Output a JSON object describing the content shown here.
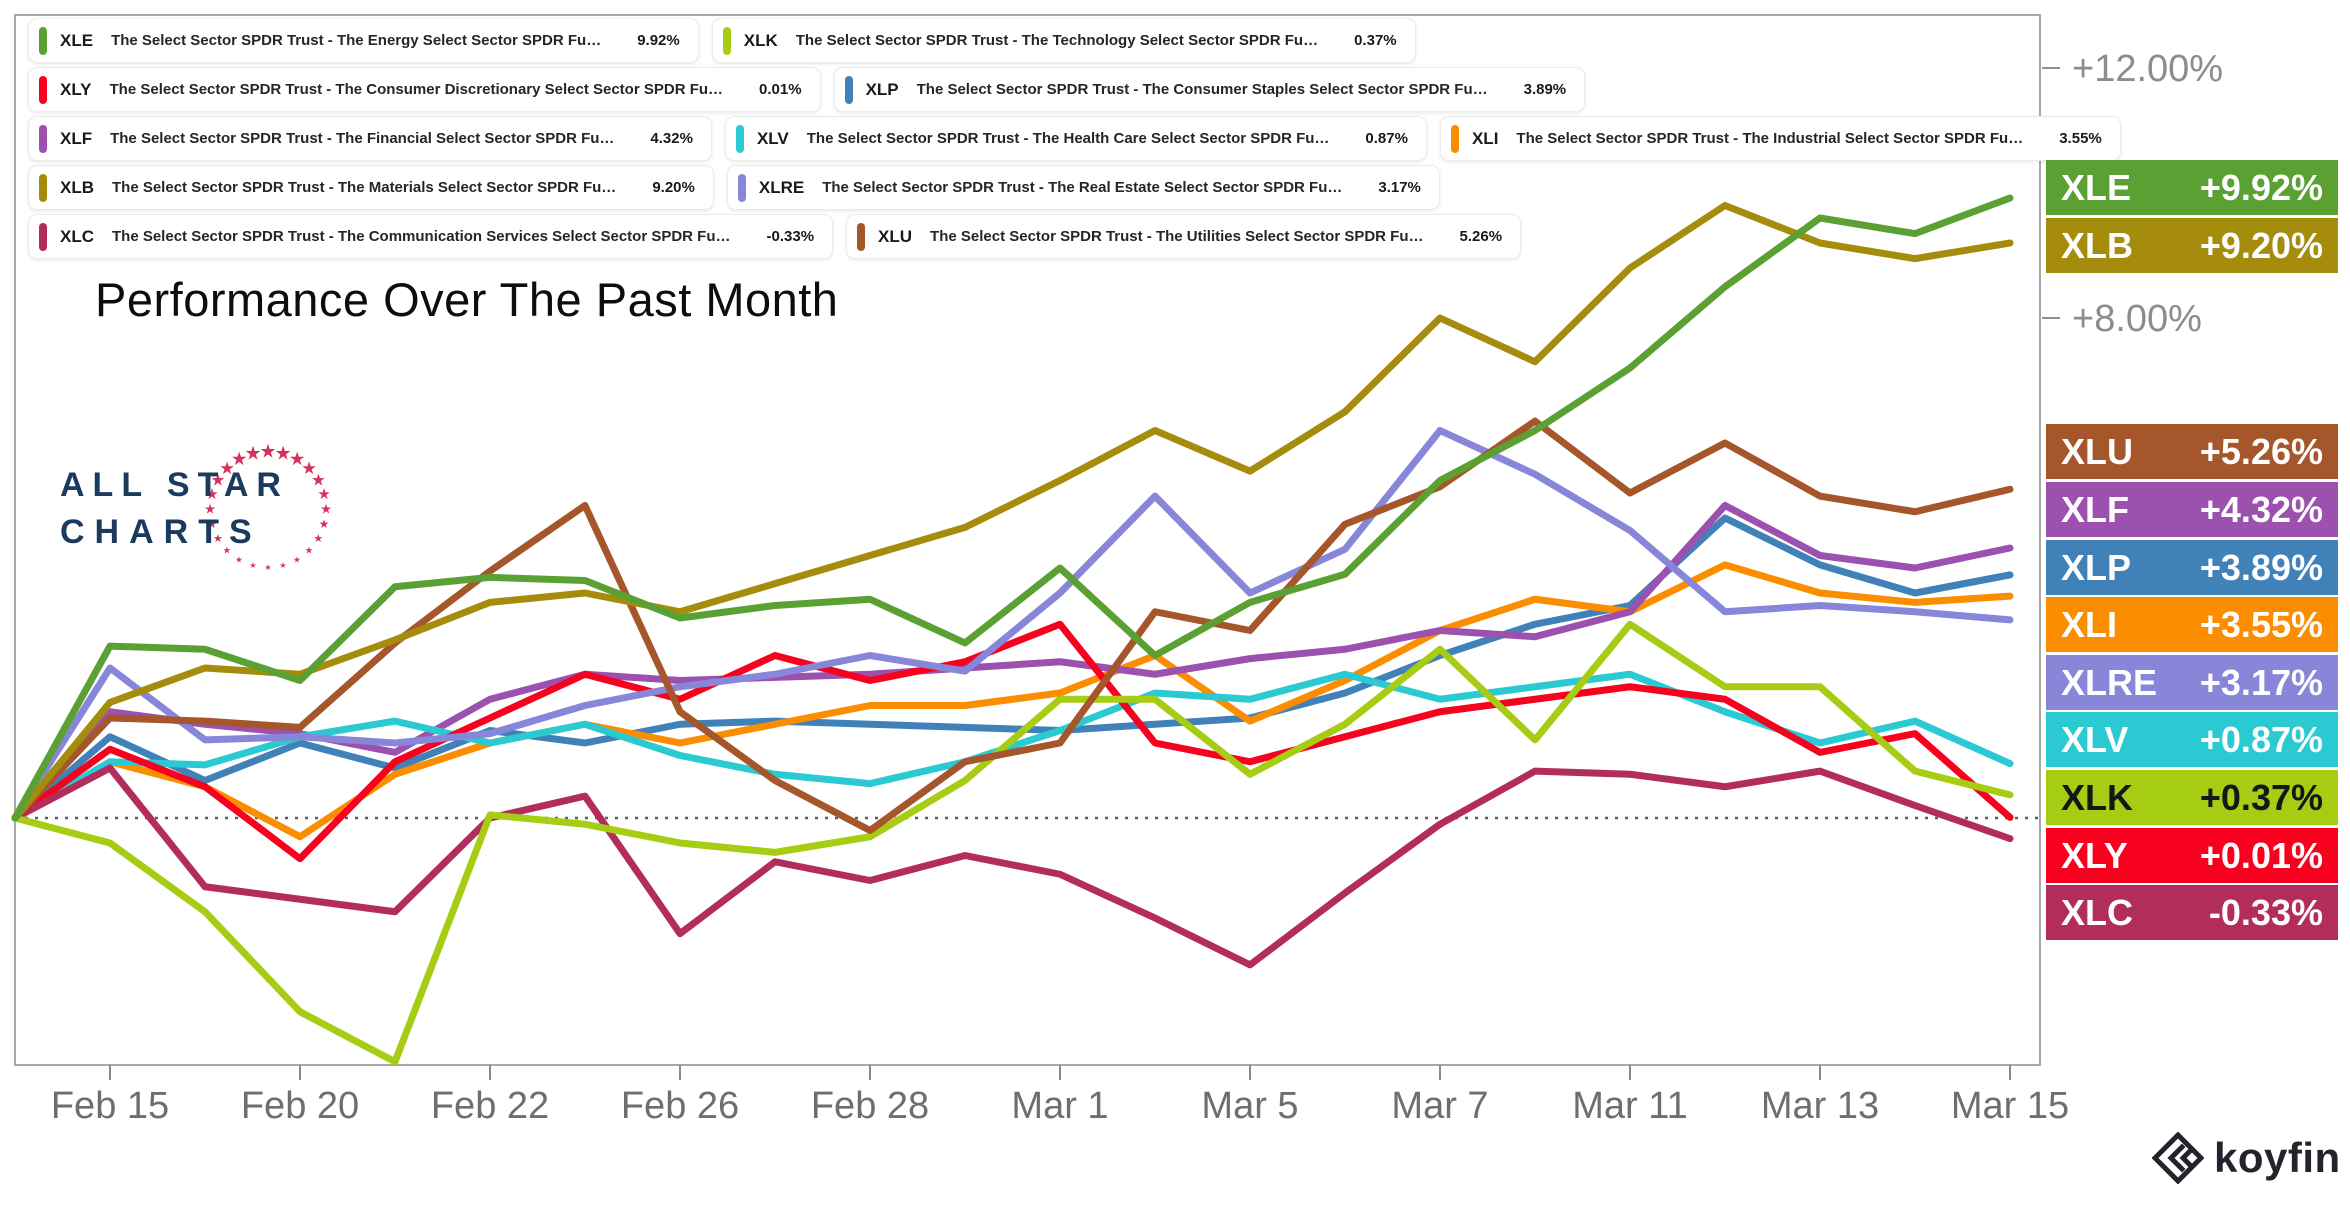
{
  "title": "Performance Over The Past Month",
  "watermark": {
    "line1": "ALL STAR",
    "line2": "CHARTS"
  },
  "brand": {
    "label": "koyfin"
  },
  "axis": {
    "y_labels": [
      {
        "text": "+12.00%",
        "value": 12
      },
      {
        "text": "+8.00%",
        "value": 8
      }
    ],
    "x_ticks": [
      "Feb 15",
      "Feb 20",
      "Feb 22",
      "Feb 26",
      "Feb 28",
      "Mar 1",
      "Mar 5",
      "Mar 7",
      "Mar 11",
      "Mar 13",
      "Mar 15"
    ]
  },
  "legend_rows": [
    [
      {
        "ticker": "XLE",
        "name": "The Select Sector SPDR Trust - The Energy Select Sector SPDR Fu…",
        "value": "9.92%",
        "color": "#5ba033"
      },
      {
        "ticker": "XLK",
        "name": "The Select Sector SPDR Trust - The Technology Select Sector SPDR Fu…",
        "value": "0.37%",
        "color": "#a6cc13"
      }
    ],
    [
      {
        "ticker": "XLY",
        "name": "The Select Sector SPDR Trust - The Consumer Discretionary Select Sector SPDR Fu…",
        "value": "0.01%",
        "color": "#f6021e"
      },
      {
        "ticker": "XLP",
        "name": "The Select Sector SPDR Trust - The Consumer Staples Select Sector SPDR Fu…",
        "value": "3.89%",
        "color": "#4081b8"
      }
    ],
    [
      {
        "ticker": "XLF",
        "name": "The Select Sector SPDR Trust - The Financial Select Sector SPDR Fu…",
        "value": "4.32%",
        "color": "#9b51ad"
      },
      {
        "ticker": "XLV",
        "name": "The Select Sector SPDR Trust - The Health Care Select Sector SPDR Fu…",
        "value": "0.87%",
        "color": "#2bc9d2"
      },
      {
        "ticker": "XLI",
        "name": "The Select Sector SPDR Trust - The Industrial Select Sector SPDR Fu…",
        "value": "3.55%",
        "color": "#fb8d00"
      }
    ],
    [
      {
        "ticker": "XLB",
        "name": "The Select Sector SPDR Trust - The Materials Select Sector SPDR Fu…",
        "value": "9.20%",
        "color": "#a68c0d"
      },
      {
        "ticker": "XLRE",
        "name": "The Select Sector SPDR Trust - The Real Estate Select Sector SPDR Fu…",
        "value": "3.17%",
        "color": "#8886d9"
      }
    ],
    [
      {
        "ticker": "XLC",
        "name": "The Select Sector SPDR Trust - The Communication Services Select Sector SPDR Fu…",
        "value": "-0.33%",
        "color": "#b32d5c"
      },
      {
        "ticker": "XLU",
        "name": "The Select Sector SPDR Trust - The Utilities Select Sector SPDR Fu…",
        "value": "5.26%",
        "color": "#a5572b"
      }
    ]
  ],
  "badges": [
    {
      "ticker": "XLE",
      "value": "+9.92%",
      "color": "#5ba033",
      "text_color": "#ffffff"
    },
    {
      "ticker": "XLB",
      "value": "+9.20%",
      "color": "#a68c0d",
      "text_color": "#ffffff"
    },
    {
      "ticker": "XLU",
      "value": "+5.26%",
      "color": "#a5572b",
      "text_color": "#ffffff"
    },
    {
      "ticker": "XLF",
      "value": "+4.32%",
      "color": "#9b51ad",
      "text_color": "#ffffff"
    },
    {
      "ticker": "XLP",
      "value": "+3.89%",
      "color": "#4081b8",
      "text_color": "#ffffff"
    },
    {
      "ticker": "XLI",
      "value": "+3.55%",
      "color": "#fb8d00",
      "text_color": "#ffffff"
    },
    {
      "ticker": "XLRE",
      "value": "+3.17%",
      "color": "#8886d9",
      "text_color": "#ffffff"
    },
    {
      "ticker": "XLV",
      "value": "+0.87%",
      "color": "#2bc9d2",
      "text_color": "#ffffff"
    },
    {
      "ticker": "XLK",
      "value": "+0.37%",
      "color": "#a6cc13",
      "text_color": "#161616"
    },
    {
      "ticker": "XLY",
      "value": "+0.01%",
      "color": "#f6021e",
      "text_color": "#ffffff"
    },
    {
      "ticker": "XLC",
      "value": "-0.33%",
      "color": "#b32d5c",
      "text_color": "#ffffff"
    }
  ],
  "chart_data": {
    "type": "line",
    "title": "Performance Over The Past Month",
    "unit": "percent_return",
    "ylim": [
      -5,
      13
    ],
    "y_gridlines": false,
    "zero_line_dotted": true,
    "x_tick_labels": [
      "Feb 15",
      "Feb 20",
      "Feb 22",
      "Feb 26",
      "Feb 28",
      "Mar 1",
      "Mar 5",
      "Mar 7",
      "Mar 11",
      "Mar 13",
      "Mar 15"
    ],
    "points_per_tick_interval": 2,
    "series": [
      {
        "ticker": "XLP",
        "color": "#4081b8",
        "final": "+3.89%",
        "values": [
          0,
          1.3,
          0.6,
          1.2,
          0.8,
          1.4,
          1.2,
          1.5,
          1.55,
          1.5,
          1.45,
          1.4,
          1.5,
          1.6,
          2.0,
          2.6,
          3.1,
          3.4,
          4.8,
          4.05,
          3.6,
          3.89
        ]
      },
      {
        "ticker": "XLI",
        "color": "#fb8d00",
        "final": "+3.55%",
        "values": [
          0,
          0.9,
          0.5,
          -0.3,
          0.7,
          1.2,
          1.5,
          1.2,
          1.5,
          1.8,
          1.8,
          2.0,
          2.6,
          1.55,
          2.2,
          3.0,
          3.5,
          3.3,
          4.05,
          3.6,
          3.45,
          3.55
        ]
      },
      {
        "ticker": "XLF",
        "color": "#9b51ad",
        "final": "+4.32%",
        "values": [
          0,
          1.7,
          1.5,
          1.35,
          1.05,
          1.9,
          2.3,
          2.2,
          2.25,
          2.3,
          2.4,
          2.5,
          2.3,
          2.55,
          2.7,
          3.0,
          2.9,
          3.3,
          5.0,
          4.2,
          4.0,
          4.32
        ]
      },
      {
        "ticker": "XLV",
        "color": "#2bc9d2",
        "final": "+0.87%",
        "values": [
          0,
          0.9,
          0.85,
          1.3,
          1.55,
          1.2,
          1.5,
          1.0,
          0.7,
          0.55,
          0.9,
          1.4,
          2.0,
          1.9,
          2.3,
          1.9,
          2.1,
          2.3,
          1.7,
          1.2,
          1.55,
          0.87
        ]
      },
      {
        "ticker": "XLY",
        "color": "#f6021e",
        "final": "+0.01%",
        "values": [
          0,
          1.1,
          0.5,
          -0.65,
          0.9,
          1.6,
          2.3,
          1.9,
          2.6,
          2.2,
          2.5,
          3.1,
          1.2,
          0.9,
          1.3,
          1.7,
          1.9,
          2.1,
          1.9,
          1.05,
          1.35,
          0.01
        ]
      },
      {
        "ticker": "XLC",
        "color": "#b32d5c",
        "final": "-0.33%",
        "values": [
          0,
          0.8,
          -1.1,
          -1.3,
          -1.5,
          0.0,
          0.35,
          -1.85,
          -0.7,
          -1.0,
          -0.6,
          -0.9,
          -1.6,
          -2.35,
          -1.2,
          -0.1,
          0.75,
          0.7,
          0.5,
          0.75,
          0.2,
          -0.33
        ]
      },
      {
        "ticker": "XLK",
        "color": "#a6cc13",
        "final": "+0.37%",
        "values": [
          0,
          -0.4,
          -1.5,
          -3.1,
          -3.9,
          0.05,
          -0.1,
          -0.4,
          -0.55,
          -0.3,
          0.6,
          1.9,
          1.9,
          0.7,
          1.5,
          2.7,
          1.25,
          3.1,
          2.1,
          2.1,
          0.75,
          0.37
        ]
      },
      {
        "ticker": "XLRE",
        "color": "#8886d9",
        "final": "+3.17%",
        "values": [
          0,
          2.4,
          1.25,
          1.3,
          1.2,
          1.35,
          1.8,
          2.1,
          2.3,
          2.6,
          2.35,
          3.6,
          5.15,
          3.6,
          4.3,
          6.2,
          5.5,
          4.6,
          3.3,
          3.4,
          3.3,
          3.17
        ]
      },
      {
        "ticker": "XLU",
        "color": "#a5572b",
        "final": "+5.26%",
        "values": [
          0,
          1.6,
          1.55,
          1.45,
          2.8,
          3.95,
          5.0,
          1.7,
          0.6,
          -0.2,
          0.9,
          1.2,
          3.3,
          3.0,
          4.7,
          5.3,
          6.35,
          5.2,
          6.0,
          5.15,
          4.9,
          5.26
        ]
      },
      {
        "ticker": "XLB",
        "color": "#a68c0d",
        "final": "+9.20%",
        "values": [
          0,
          1.85,
          2.4,
          2.3,
          2.85,
          3.45,
          3.6,
          3.3,
          3.75,
          4.2,
          4.65,
          5.4,
          6.2,
          5.55,
          6.5,
          8.0,
          7.3,
          8.8,
          9.8,
          9.2,
          8.95,
          9.2
        ]
      },
      {
        "ticker": "XLE",
        "color": "#5ba033",
        "final": "+9.92%",
        "values": [
          0,
          2.75,
          2.7,
          2.2,
          3.7,
          3.85,
          3.8,
          3.2,
          3.4,
          3.5,
          2.8,
          4.0,
          2.6,
          3.45,
          3.9,
          5.4,
          6.2,
          7.2,
          8.5,
          9.6,
          9.35,
          9.92
        ]
      }
    ]
  }
}
